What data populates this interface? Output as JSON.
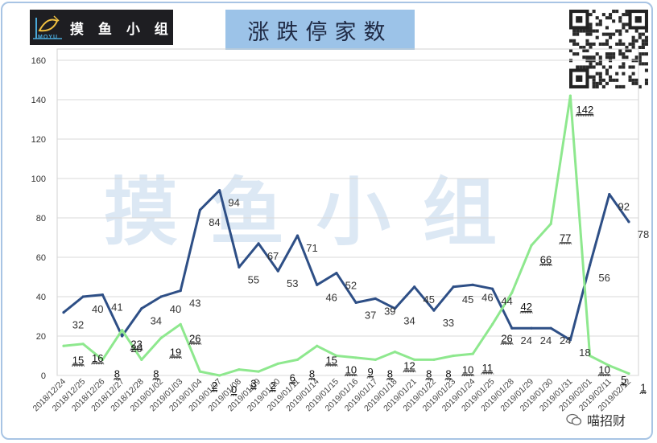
{
  "header": {
    "logo_text": "摸 鱼 小 组",
    "logo_sub": "MOYU",
    "title": "涨跌停家数",
    "watermark": "摸鱼小组",
    "footer_brand": "喵招财"
  },
  "colors": {
    "limit_up_series": "#2e4f86",
    "limit_down_series": "#8ee88e",
    "title_bg": "#9cc3e8",
    "frame_border": "#a8c4e4"
  },
  "chart_data": {
    "type": "line",
    "title": "涨跌停家数",
    "ylim": [
      0,
      160
    ],
    "y_ticks": [
      0,
      20,
      40,
      60,
      80,
      100,
      120,
      140,
      160
    ],
    "grid": true,
    "legend": "none",
    "categories": [
      "2018/12/24",
      "2018/12/25",
      "2018/12/26",
      "2018/12/27",
      "2018/12/28",
      "2019/01/02",
      "2019/01/03",
      "2019/01/04",
      "2019/01/07",
      "2019/01/08",
      "2019/01/09",
      "2019/01/10",
      "2019/01/11",
      "2019/01/14",
      "2019/01/15",
      "2019/01/16",
      "2019/01/17",
      "2019/01/18",
      "2019/01/21",
      "2019/01/22",
      "2019/01/23",
      "2019/01/24",
      "2019/01/25",
      "2019/01/28",
      "2019/01/29",
      "2019/01/30",
      "2019/01/31",
      "2019/02/01",
      "2019/02/11",
      "2019/02/12"
    ],
    "series": [
      {
        "color": "#2e4f86",
        "values": [
          32,
          40,
          41,
          20,
          34,
          40,
          43,
          84,
          94,
          55,
          67,
          53,
          71,
          46,
          52,
          37,
          39,
          34,
          45,
          33,
          45,
          46,
          44,
          24,
          24,
          24,
          18,
          56,
          92,
          78
        ]
      },
      {
        "color": "#8ee88e",
        "values": [
          15,
          16,
          8,
          23,
          8,
          19,
          26,
          2,
          0,
          3,
          2,
          6,
          8,
          15,
          10,
          9,
          8,
          12,
          8,
          8,
          10,
          11,
          26,
          42,
          66,
          77,
          142,
          10,
          5,
          1
        ]
      }
    ]
  }
}
